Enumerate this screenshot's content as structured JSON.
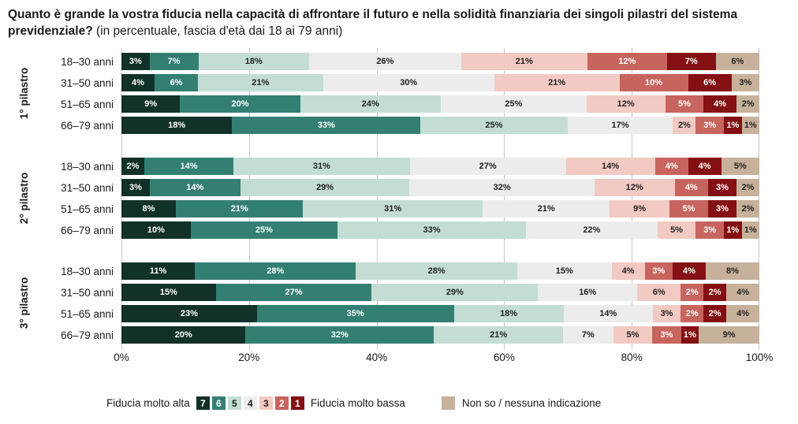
{
  "title": {
    "question": "Quanto è grande la vostra fiducia nella capacità di affrontare il futuro e nella solidità finanziaria dei singoli pilastri del sistema previdenziale?",
    "note": "(in percentuale, fascia d'età dai 18 ai 79 anni)"
  },
  "chart_data": {
    "type": "bar",
    "stacked": true,
    "orientation": "horizontal",
    "unit": "%",
    "grid": true,
    "segments": [
      {
        "key": "7",
        "color": "#123129",
        "label_color": "#ffffff"
      },
      {
        "key": "6",
        "color": "#338073",
        "label_color": "#ffffff"
      },
      {
        "key": "5",
        "color": "#c3ddd4",
        "label_color": "#222222"
      },
      {
        "key": "4",
        "color": "#ececec",
        "label_color": "#222222"
      },
      {
        "key": "3",
        "color": "#f2cac3",
        "label_color": "#222222"
      },
      {
        "key": "2",
        "color": "#c8645e",
        "label_color": "#ffffff"
      },
      {
        "key": "1",
        "color": "#851013",
        "label_color": "#ffffff"
      },
      {
        "key": "non_so",
        "color": "#c7b19b",
        "label_color": "#222222"
      }
    ],
    "groups": [
      {
        "label": "1° pilastro",
        "rows": [
          {
            "label": "18–30 anni",
            "values": [
              3,
              7,
              18,
              26,
              21,
              12,
              7,
              6
            ]
          },
          {
            "label": "31–50 anni",
            "values": [
              4,
              6,
              21,
              30,
              21,
              10,
              6,
              3
            ]
          },
          {
            "label": "51–65 anni",
            "values": [
              9,
              20,
              24,
              25,
              12,
              5,
              4,
              2
            ]
          },
          {
            "label": "66–79 anni",
            "values": [
              18,
              33,
              25,
              17,
              2,
              3,
              1,
              1
            ]
          }
        ]
      },
      {
        "label": "2° pilastro",
        "rows": [
          {
            "label": "18–30 anni",
            "values": [
              2,
              14,
              31,
              27,
              14,
              4,
              4,
              5
            ]
          },
          {
            "label": "31–50 anni",
            "values": [
              3,
              14,
              29,
              32,
              12,
              4,
              3,
              2
            ]
          },
          {
            "label": "51–65 anni",
            "values": [
              8,
              21,
              31,
              21,
              9,
              5,
              3,
              2
            ]
          },
          {
            "label": "66–79 anni",
            "values": [
              10,
              25,
              33,
              22,
              5,
              3,
              1,
              1
            ]
          }
        ]
      },
      {
        "label": "3° pilastro",
        "rows": [
          {
            "label": "18–30 anni",
            "values": [
              11,
              28,
              28,
              15,
              4,
              3,
              4,
              8
            ]
          },
          {
            "label": "31–50 anni",
            "values": [
              15,
              27,
              29,
              16,
              6,
              2,
              2,
              4
            ]
          },
          {
            "label": "51–65 anni",
            "values": [
              23,
              35,
              18,
              14,
              3,
              2,
              2,
              4
            ]
          },
          {
            "label": "66–79 anni",
            "values": [
              20,
              32,
              21,
              7,
              5,
              3,
              1,
              9
            ]
          }
        ]
      }
    ],
    "x_axis": {
      "range": [
        0,
        100
      ],
      "ticks": [
        "0%",
        "20%",
        "40%",
        "60%",
        "80%",
        "100%"
      ]
    },
    "legend_position": "bottom"
  },
  "legend": {
    "high_label": "Fiducia molto alta",
    "low_label": "Fiducia molto bassa",
    "scale": [
      "7",
      "6",
      "5",
      "4",
      "3",
      "2",
      "1"
    ],
    "nonso_label": "Non so / nessuna indicazione"
  }
}
